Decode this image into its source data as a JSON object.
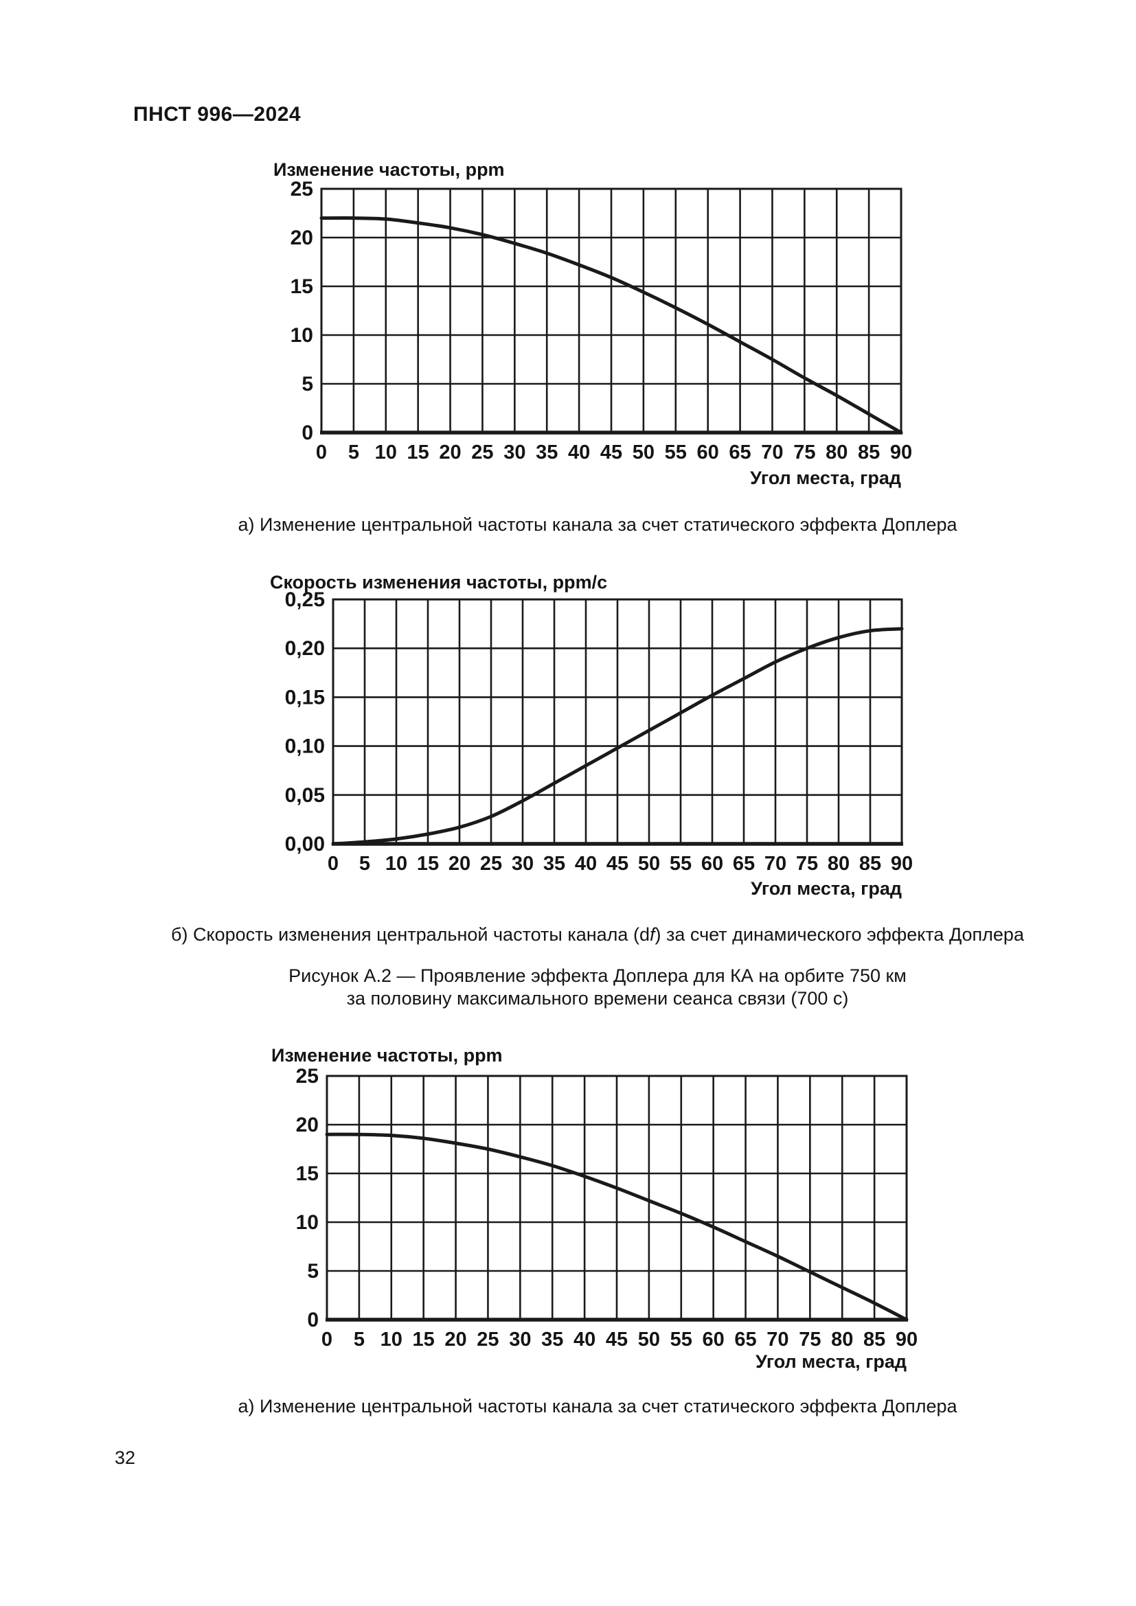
{
  "page": {
    "header": "ПНСТ 996—2024",
    "page_number": "32",
    "caption_a_top": "а) Изменение центральной частоты канала за счет статического эффекта Доплера",
    "caption_b_prefix": "б) Скорость изменения центральной частоты канала (d",
    "caption_b_italic": "f",
    "caption_b_suffix": ") за счет динамического эффекта Доплера",
    "figure_caption_line1": "Рисунок А.2 — Проявление эффекта Доплера для КА на орбите 750 км",
    "figure_caption_line2": "за половину максимального времени сеанса связи (700 с)",
    "caption_a_bottom": "а) Изменение центральной частоты канала за счет статического эффекта Доплера"
  },
  "chart_data": [
    {
      "type": "line",
      "title": "Изменение частоты, ppm",
      "xlabel": "Угол места, град",
      "xlim": [
        0,
        90
      ],
      "ylim": [
        0,
        25
      ],
      "x_ticks": [
        0,
        5,
        10,
        15,
        20,
        25,
        30,
        35,
        40,
        45,
        50,
        55,
        60,
        65,
        70,
        75,
        80,
        85,
        90
      ],
      "x_tick_labels": [
        "0",
        "5",
        "10",
        "15",
        "20",
        "25",
        "30",
        "35",
        "40",
        "45",
        "50",
        "55",
        "60",
        "65",
        "70",
        "75",
        "80",
        "85",
        "90"
      ],
      "y_ticks": [
        0,
        5,
        10,
        15,
        20,
        25
      ],
      "y_tick_labels": [
        "0",
        "5",
        "10",
        "15",
        "20",
        "25"
      ],
      "x": [
        0,
        5,
        10,
        15,
        20,
        25,
        30,
        35,
        40,
        45,
        50,
        55,
        60,
        65,
        70,
        75,
        80,
        85,
        90
      ],
      "y": [
        22.0,
        22.0,
        21.9,
        21.5,
        21.0,
        20.3,
        19.4,
        18.4,
        17.2,
        15.9,
        14.4,
        12.8,
        11.1,
        9.3,
        7.5,
        5.6,
        3.8,
        1.9,
        0.0
      ],
      "grid": true,
      "legend": "none",
      "line_color": "#1a1a1a"
    },
    {
      "type": "line",
      "title": "Скорость изменения частоты, ppm/с",
      "xlabel": "Угол места, град",
      "xlim": [
        0,
        90
      ],
      "ylim": [
        0,
        0.25
      ],
      "x_ticks": [
        0,
        5,
        10,
        15,
        20,
        25,
        30,
        35,
        40,
        45,
        50,
        55,
        60,
        65,
        70,
        75,
        80,
        85,
        90
      ],
      "x_tick_labels": [
        "0",
        "5",
        "10",
        "15",
        "20",
        "25",
        "30",
        "35",
        "40",
        "45",
        "50",
        "55",
        "60",
        "65",
        "70",
        "75",
        "80",
        "85",
        "90"
      ],
      "y_ticks": [
        0,
        0.05,
        0.1,
        0.15,
        0.2,
        0.25
      ],
      "y_tick_labels": [
        "0,00",
        "0,05",
        "0,10",
        "0,15",
        "0,20",
        "0,25"
      ],
      "x": [
        0,
        5,
        10,
        15,
        20,
        25,
        30,
        35,
        40,
        45,
        50,
        55,
        60,
        65,
        70,
        75,
        80,
        85,
        90
      ],
      "y": [
        0.0,
        0.002,
        0.005,
        0.01,
        0.017,
        0.028,
        0.044,
        0.062,
        0.08,
        0.098,
        0.116,
        0.134,
        0.152,
        0.169,
        0.186,
        0.2,
        0.211,
        0.218,
        0.22
      ],
      "grid": true,
      "legend": "none",
      "line_color": "#1a1a1a"
    },
    {
      "type": "line",
      "title": "Изменение частоты, ppm",
      "xlabel": "Угол места, град",
      "xlim": [
        0,
        90
      ],
      "ylim": [
        0,
        25
      ],
      "x_ticks": [
        0,
        5,
        10,
        15,
        20,
        25,
        30,
        35,
        40,
        45,
        50,
        55,
        60,
        65,
        70,
        75,
        80,
        85,
        90
      ],
      "x_tick_labels": [
        "0",
        "5",
        "10",
        "15",
        "20",
        "25",
        "30",
        "35",
        "40",
        "45",
        "50",
        "55",
        "60",
        "65",
        "70",
        "75",
        "80",
        "85",
        "90"
      ],
      "y_ticks": [
        0,
        5,
        10,
        15,
        20,
        25
      ],
      "y_tick_labels": [
        "0",
        "5",
        "10",
        "15",
        "20",
        "25"
      ],
      "x": [
        0,
        5,
        10,
        15,
        20,
        25,
        30,
        35,
        40,
        45,
        50,
        55,
        60,
        65,
        70,
        75,
        80,
        85,
        90
      ],
      "y": [
        19.0,
        19.0,
        18.9,
        18.6,
        18.1,
        17.5,
        16.7,
        15.8,
        14.7,
        13.5,
        12.2,
        10.9,
        9.5,
        8.0,
        6.5,
        4.9,
        3.3,
        1.7,
        0.0
      ],
      "grid": true,
      "legend": "none",
      "line_color": "#1a1a1a"
    }
  ]
}
